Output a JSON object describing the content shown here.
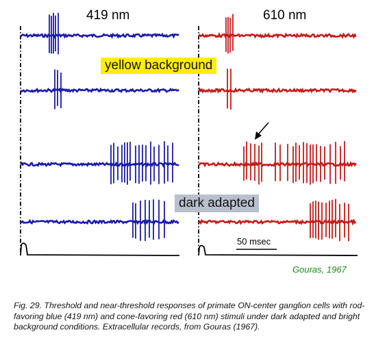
{
  "columns": [
    {
      "label": "419 nm",
      "color": "#1a1aaa"
    },
    {
      "label": "610 nm",
      "color": "#c41a1a"
    }
  ],
  "conditions": {
    "bright": "yellow background",
    "dark": "dark adapted"
  },
  "scale_bar": "50 msec",
  "citation": "Gouras, 1967",
  "caption": "Fig. 29. Threshold and near-threshold responses of primate ON-center ganglion cells with rod-favoring blue (419 nm) and cone-favoring red (610 nm) stimuli under dark adapted and bright background conditions. Extracellular records, from Gouras (1967).",
  "colors": {
    "yellow_highlight": "#ffee00",
    "dark_highlight": "#b9c0cc",
    "citation_green": "#1a8c1a"
  },
  "traces": {
    "blue": [
      {
        "spikes": [
          72,
          75,
          78,
          81,
          85
        ]
      },
      {
        "spikes": [
          80,
          84,
          89
        ]
      },
      {
        "spikes": [
          162,
          166,
          172,
          178,
          182,
          186,
          190,
          198,
          203,
          208,
          213,
          220,
          225,
          232,
          240,
          245,
          252
        ]
      },
      {
        "spikes": [
          194,
          198,
          205,
          212,
          218,
          224,
          232,
          240
        ]
      }
    ],
    "red": [
      {
        "spikes": [
          330,
          333,
          336,
          340
        ]
      },
      {
        "spikes": [
          332,
          337
        ]
      },
      {
        "spikes": [
          356,
          360,
          366,
          372,
          378,
          382,
          402,
          409,
          420,
          428,
          432,
          437,
          443,
          448,
          453,
          457,
          462,
          468,
          474,
          482,
          490,
          497,
          503
        ]
      },
      {
        "spikes": [
          453,
          457,
          461,
          465,
          470,
          476,
          481,
          485,
          490,
          496,
          503,
          509
        ]
      }
    ]
  }
}
